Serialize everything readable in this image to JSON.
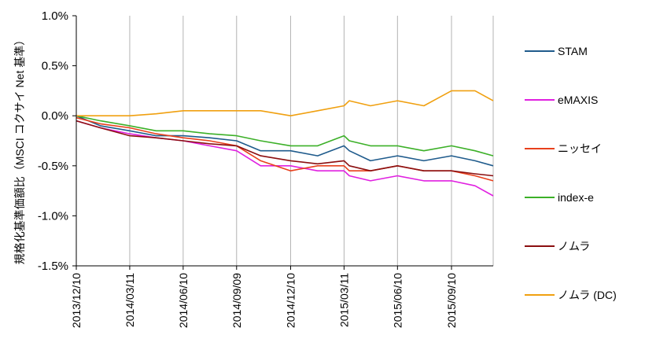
{
  "chart_data": {
    "type": "line",
    "title": "",
    "xlabel": "",
    "ylabel": "規格化基準価額比（MSCI コクサイ Net 基準）",
    "ylim": [
      -1.5,
      1.0
    ],
    "y_ticks": [
      1.0,
      0.5,
      0.0,
      -0.5,
      -1.0,
      -1.5
    ],
    "y_tick_labels": [
      "1.0%",
      "0.5%",
      "0.0%",
      "-0.5%",
      "-1.0%",
      "-1.5%"
    ],
    "x_tick_labels": [
      "2013/12/10",
      "2014/03/11",
      "2014/06/10",
      "2014/09/09",
      "2014/12/10",
      "2015/03/11",
      "2015/06/10",
      "2015/09/10"
    ],
    "xlim": [
      "2013-12-10",
      "2015-11-20"
    ],
    "grid": {
      "vertical": true,
      "horizontal": false
    },
    "legend_position": "right",
    "series": [
      {
        "name": "STAM",
        "color": "#1f5b8c",
        "x": [
          "2013-12-10",
          "2014-01-20",
          "2014-03-11",
          "2014-04-25",
          "2014-06-10",
          "2014-07-25",
          "2014-09-09",
          "2014-10-20",
          "2014-12-10",
          "2015-01-25",
          "2015-03-11",
          "2015-03-20",
          "2015-04-25",
          "2015-06-10",
          "2015-07-25",
          "2015-09-10",
          "2015-10-20",
          "2015-11-20"
        ],
        "y": [
          0.0,
          -0.1,
          -0.15,
          -0.2,
          -0.2,
          -0.22,
          -0.25,
          -0.35,
          -0.35,
          -0.4,
          -0.3,
          -0.35,
          -0.45,
          -0.4,
          -0.45,
          -0.4,
          -0.45,
          -0.5
        ]
      },
      {
        "name": "eMAXIS",
        "color": "#e020e0",
        "x": [
          "2013-12-10",
          "2014-01-20",
          "2014-03-11",
          "2014-04-25",
          "2014-06-10",
          "2014-07-25",
          "2014-09-09",
          "2014-10-20",
          "2014-12-10",
          "2015-01-25",
          "2015-03-11",
          "2015-03-20",
          "2015-04-25",
          "2015-06-10",
          "2015-07-25",
          "2015-09-10",
          "2015-10-20",
          "2015-11-20"
        ],
        "y": [
          -0.05,
          -0.12,
          -0.18,
          -0.22,
          -0.25,
          -0.3,
          -0.35,
          -0.5,
          -0.5,
          -0.55,
          -0.55,
          -0.6,
          -0.65,
          -0.6,
          -0.65,
          -0.65,
          -0.7,
          -0.8
        ]
      },
      {
        "name": "ニッセイ",
        "color": "#e8401c",
        "x": [
          "2013-12-10",
          "2014-01-20",
          "2014-03-11",
          "2014-04-25",
          "2014-06-10",
          "2014-07-25",
          "2014-09-09",
          "2014-10-20",
          "2014-12-10",
          "2015-01-25",
          "2015-03-11",
          "2015-03-20",
          "2015-04-25",
          "2015-06-10",
          "2015-07-25",
          "2015-09-10",
          "2015-10-20",
          "2015-11-20"
        ],
        "y": [
          -0.02,
          -0.08,
          -0.12,
          -0.18,
          -0.22,
          -0.25,
          -0.3,
          -0.45,
          -0.55,
          -0.5,
          -0.5,
          -0.55,
          -0.55,
          -0.5,
          -0.55,
          -0.55,
          -0.6,
          -0.65
        ]
      },
      {
        "name": "index-e",
        "color": "#3cb028",
        "x": [
          "2013-12-10",
          "2014-01-20",
          "2014-03-11",
          "2014-04-25",
          "2014-06-10",
          "2014-07-25",
          "2014-09-09",
          "2014-10-20",
          "2014-12-10",
          "2015-01-25",
          "2015-03-11",
          "2015-03-20",
          "2015-04-25",
          "2015-06-10",
          "2015-07-25",
          "2015-09-10",
          "2015-10-20",
          "2015-11-20"
        ],
        "y": [
          0.0,
          -0.05,
          -0.1,
          -0.15,
          -0.15,
          -0.18,
          -0.2,
          -0.25,
          -0.3,
          -0.3,
          -0.2,
          -0.25,
          -0.3,
          -0.3,
          -0.35,
          -0.3,
          -0.35,
          -0.4
        ]
      },
      {
        "name": "ノムラ",
        "color": "#8b0f10",
        "x": [
          "2013-12-10",
          "2014-01-20",
          "2014-03-11",
          "2014-04-25",
          "2014-06-10",
          "2014-07-25",
          "2014-09-09",
          "2014-10-20",
          "2014-12-10",
          "2015-01-25",
          "2015-03-11",
          "2015-03-20",
          "2015-04-25",
          "2015-06-10",
          "2015-07-25",
          "2015-09-10",
          "2015-10-20",
          "2015-11-20"
        ],
        "y": [
          -0.05,
          -0.12,
          -0.2,
          -0.22,
          -0.25,
          -0.28,
          -0.3,
          -0.4,
          -0.45,
          -0.48,
          -0.45,
          -0.5,
          -0.55,
          -0.5,
          -0.55,
          -0.55,
          -0.58,
          -0.6
        ]
      },
      {
        "name": "ノムラ (DC)",
        "color": "#f0a010",
        "x": [
          "2013-12-10",
          "2014-01-20",
          "2014-03-11",
          "2014-04-25",
          "2014-06-10",
          "2014-07-25",
          "2014-09-09",
          "2014-10-20",
          "2014-12-10",
          "2015-01-25",
          "2015-03-11",
          "2015-03-20",
          "2015-04-25",
          "2015-06-10",
          "2015-07-25",
          "2015-09-10",
          "2015-10-20",
          "2015-11-20"
        ],
        "y": [
          0.0,
          0.0,
          0.0,
          0.02,
          0.05,
          0.05,
          0.05,
          0.05,
          0.0,
          0.05,
          0.1,
          0.15,
          0.1,
          0.15,
          0.1,
          0.25,
          0.25,
          0.15
        ]
      }
    ]
  }
}
